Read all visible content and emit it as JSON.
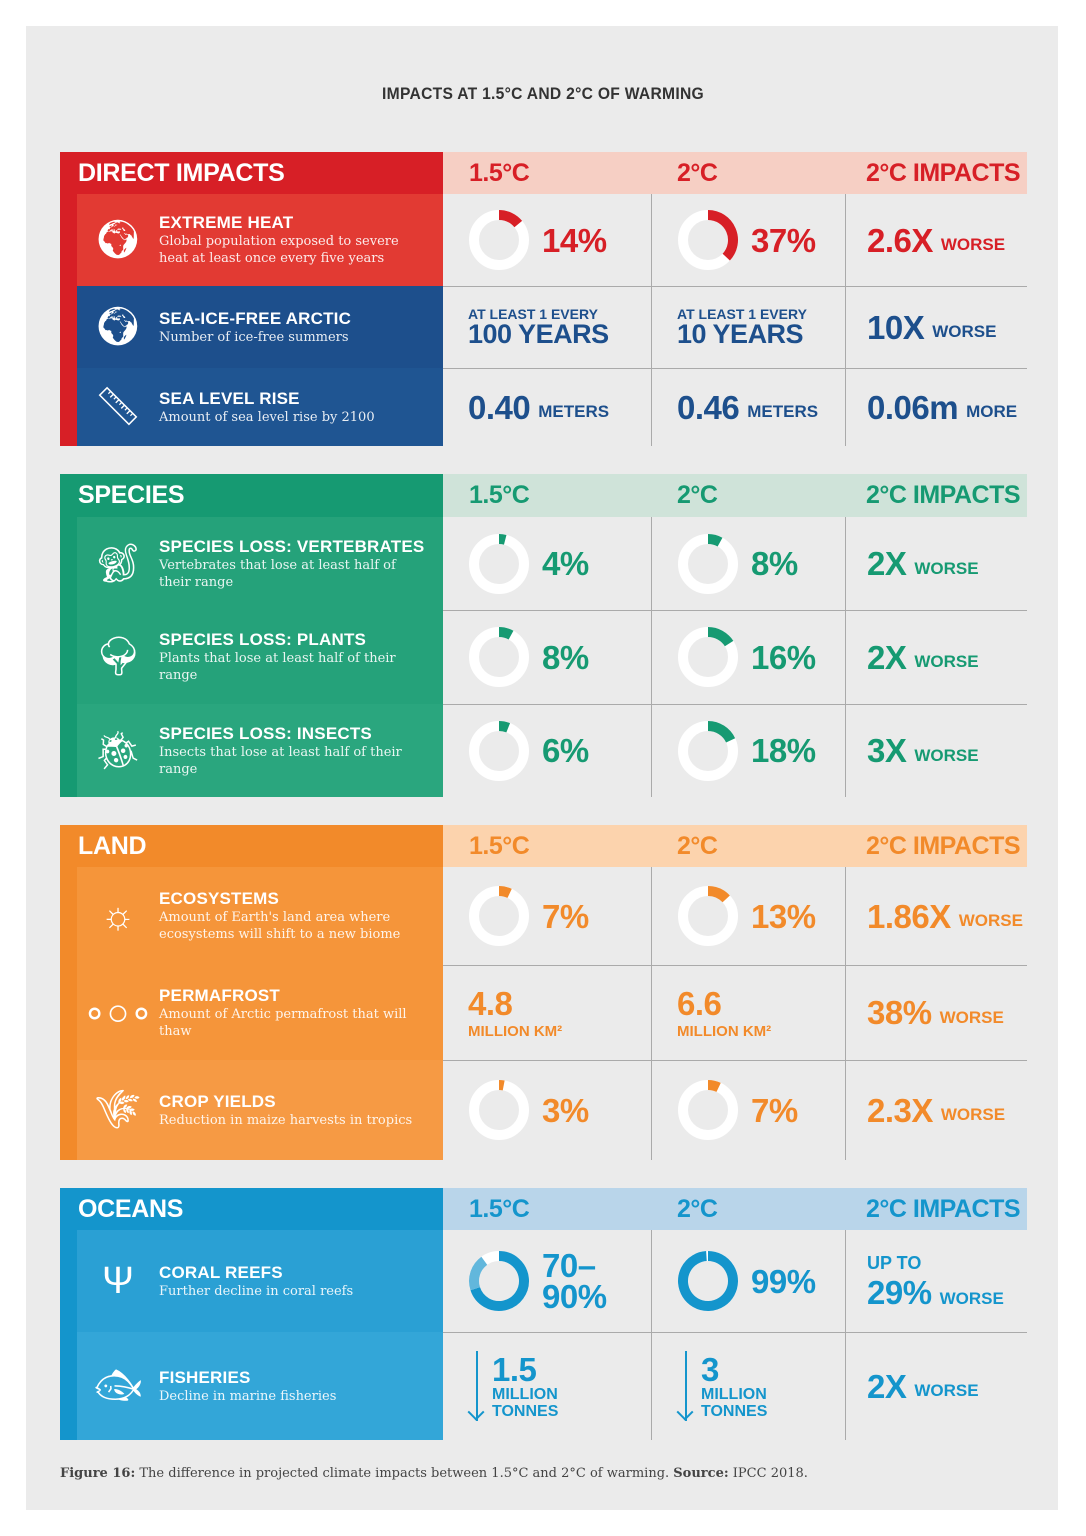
{
  "title": "IMPACTS AT 1.5°C AND 2°C OF WARMING",
  "caption": {
    "label": "Figure 16:",
    "text": " The difference in projected climate impacts between 1.5°C and 2°C of warming. ",
    "source_label": "Source:",
    "source": " IPCC 2018."
  },
  "sections": [
    {
      "name": "DIRECT IMPACTS",
      "color": "#d71f26",
      "light": "#f6cfc4",
      "cols": [
        "1.5°C",
        "2°C",
        "2°C IMPACTS"
      ],
      "rows": [
        {
          "title": "EXTREME HEAT",
          "desc": "Global population exposed to severe heat at least once every five years",
          "icon": "globe-icon",
          "bg": "#e23a33",
          "color": "#d71f26",
          "cells": [
            {
              "type": "donut",
              "pct": 14,
              "label": "14%"
            },
            {
              "type": "donut",
              "pct": 37,
              "label": "37%"
            },
            {
              "type": "mult",
              "big": "2.6X",
              "unit": "WORSE"
            }
          ]
        },
        {
          "title": "SEA-ICE-FREE ARCTIC",
          "desc": "Number of ice-free summers",
          "icon": "globe-icon",
          "bg": "#1d4f8c",
          "color": "#1d4f8c",
          "cells": [
            {
              "type": "text",
              "small": "AT LEAST 1 EVERY",
              "big": "100 YEARS"
            },
            {
              "type": "text",
              "small": "AT LEAST 1 EVERY",
              "big": "10 YEARS"
            },
            {
              "type": "mult",
              "big": "10X",
              "unit": "WORSE"
            }
          ]
        },
        {
          "title": "SEA LEVEL RISE",
          "desc": "Amount of sea level rise by 2100",
          "icon": "sea-level-gauge-icon",
          "bg": "#1f5592",
          "color": "#1d4f8c",
          "cells": [
            {
              "type": "mult",
              "big": "0.40",
              "unit": "METERS"
            },
            {
              "type": "mult",
              "big": "0.46",
              "unit": "METERS"
            },
            {
              "type": "mult",
              "big": "0.06m",
              "unit": "MORE"
            }
          ]
        }
      ]
    },
    {
      "name": "SPECIES",
      "color": "#169a72",
      "light": "#cfe3d9",
      "cols": [
        "1.5°C",
        "2°C",
        "2°C IMPACTS"
      ],
      "rows": [
        {
          "title": "SPECIES LOSS: VERTEBRATES",
          "desc": "Vertebrates that lose at least half of their range",
          "icon": "monkey-icon",
          "bg": "#25a27a",
          "color": "#169a72",
          "cells": [
            {
              "type": "donut",
              "pct": 4,
              "label": "4%"
            },
            {
              "type": "donut",
              "pct": 8,
              "label": "8%"
            },
            {
              "type": "mult",
              "big": "2X",
              "unit": "WORSE"
            }
          ]
        },
        {
          "title": "SPECIES LOSS: PLANTS",
          "desc": "Plants that lose at least half of their range",
          "icon": "tree-icon",
          "bg": "#25a27a",
          "color": "#169a72",
          "cells": [
            {
              "type": "donut",
              "pct": 8,
              "label": "8%"
            },
            {
              "type": "donut",
              "pct": 16,
              "label": "16%"
            },
            {
              "type": "mult",
              "big": "2X",
              "unit": "WORSE"
            }
          ]
        },
        {
          "title": "SPECIES LOSS: INSECTS",
          "desc": "Insects that lose at least half of their range",
          "icon": "beetle-icon",
          "bg": "#2aa67e",
          "color": "#169a72",
          "cells": [
            {
              "type": "donut",
              "pct": 6,
              "label": "6%"
            },
            {
              "type": "donut",
              "pct": 18,
              "label": "18%"
            },
            {
              "type": "mult",
              "big": "3X",
              "unit": "WORSE"
            }
          ]
        }
      ]
    },
    {
      "name": "LAND",
      "color": "#f28a2a",
      "light": "#fcd3ad",
      "cols": [
        "1.5°C",
        "2°C",
        "2°C IMPACTS"
      ],
      "rows": [
        {
          "title": "ECOSYSTEMS",
          "desc": "Amount of Earth's land area where ecosystems will shift to a new biome",
          "icon": "sun-wind-icon",
          "bg": "#f5953a",
          "color": "#f28a2a",
          "cells": [
            {
              "type": "donut",
              "pct": 7,
              "label": "7%"
            },
            {
              "type": "donut",
              "pct": 13,
              "label": "13%"
            },
            {
              "type": "mult",
              "big": "1.86X",
              "unit": "WORSE"
            }
          ]
        },
        {
          "title": "PERMAFROST",
          "desc": "Amount of Arctic permafrost that will thaw",
          "icon": "bubbles-icon",
          "bg": "#f5953a",
          "color": "#f28a2a",
          "cells": [
            {
              "type": "stack",
              "big": "4.8",
              "unit": "MILLION KM²"
            },
            {
              "type": "stack",
              "big": "6.6",
              "unit": "MILLION KM²"
            },
            {
              "type": "mult",
              "big": "38%",
              "unit": "WORSE"
            }
          ]
        },
        {
          "title": "CROP YIELDS",
          "desc": "Reduction in maize harvests in tropics",
          "icon": "wheat-icon",
          "bg": "#f69a44",
          "color": "#f28a2a",
          "cells": [
            {
              "type": "donut",
              "pct": 3,
              "label": "3%"
            },
            {
              "type": "donut",
              "pct": 7,
              "label": "7%"
            },
            {
              "type": "mult",
              "big": "2.3X",
              "unit": "WORSE"
            }
          ]
        }
      ]
    },
    {
      "name": "OCEANS",
      "color": "#1495cc",
      "light": "#b9d5ea",
      "cols": [
        "1.5°C",
        "2°C",
        "2°C IMPACTS"
      ],
      "rows": [
        {
          "title": "CORAL REEFS",
          "desc": "Further decline in coral reefs",
          "icon": "coral-icon",
          "bg": "#2aa0d4",
          "color": "#1495cc",
          "cells": [
            {
              "type": "donut",
              "pct": 70,
              "pct_high": 90,
              "label": "70–\n90%"
            },
            {
              "type": "donut",
              "pct": 99,
              "label": "99%"
            },
            {
              "type": "upto",
              "small": "UP TO",
              "big": "29%",
              "unit": "WORSE"
            }
          ]
        },
        {
          "title": "FISHERIES",
          "desc": "Decline in marine fisheries",
          "icon": "fish-icon",
          "bg": "#33a6d8",
          "color": "#1495cc",
          "cells": [
            {
              "type": "arrow",
              "big": "1.5",
              "unit": "MILLION\nTONNES"
            },
            {
              "type": "arrow",
              "big": "3",
              "unit": "MILLION\nTONNES"
            },
            {
              "type": "mult",
              "big": "2X",
              "unit": "WORSE"
            }
          ]
        }
      ]
    }
  ]
}
